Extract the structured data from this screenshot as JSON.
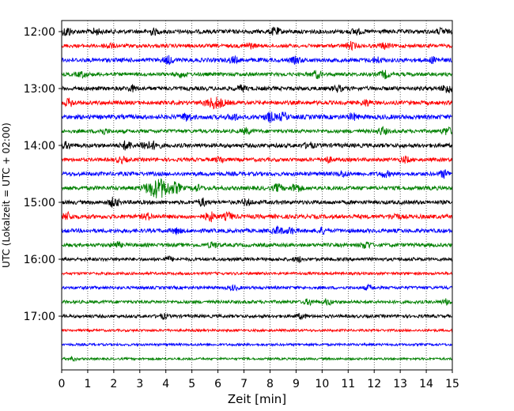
{
  "chart_data": {
    "type": "line",
    "title": "",
    "xlabel": "Zeit  [min]",
    "ylabel": "UTC (Lokalzeit = UTC + 02:00)",
    "xlim": [
      0,
      15
    ],
    "x_ticks": [
      "0",
      "1",
      "2",
      "3",
      "4",
      "5",
      "6",
      "7",
      "8",
      "9",
      "10",
      "11",
      "12",
      "13",
      "14",
      "15"
    ],
    "y_ticks": [
      "12:00",
      "13:00",
      "14:00",
      "15:00",
      "16:00",
      "17:00"
    ],
    "grid": "vertical dotted at each minute",
    "row_colors": [
      "#000000",
      "#ff0000",
      "#0000ff",
      "#008000"
    ],
    "rows": [
      {
        "start": "12:00",
        "color": "#000000",
        "amp": 2.6,
        "bursts": [
          [
            0.2,
            5
          ],
          [
            1.3,
            3
          ],
          [
            3.5,
            3
          ],
          [
            8.2,
            4
          ],
          [
            11.3,
            3
          ],
          [
            14.6,
            3
          ]
        ]
      },
      {
        "start": "12:15",
        "color": "#ff0000",
        "amp": 2.3,
        "bursts": [
          [
            1.8,
            3
          ],
          [
            7.2,
            3
          ],
          [
            11.1,
            4
          ],
          [
            12.4,
            3
          ]
        ]
      },
      {
        "start": "12:30",
        "color": "#0000ff",
        "amp": 2.6,
        "bursts": [
          [
            4.1,
            4
          ],
          [
            6.6,
            3
          ],
          [
            9.0,
            3
          ],
          [
            12.1,
            3
          ],
          [
            14.3,
            3
          ]
        ]
      },
      {
        "start": "12:45",
        "color": "#008000",
        "amp": 2.3,
        "bursts": [
          [
            0.8,
            3
          ],
          [
            4.6,
            3
          ],
          [
            9.8,
            4
          ],
          [
            12.4,
            4
          ]
        ]
      },
      {
        "start": "13:00",
        "color": "#000000",
        "amp": 2.5,
        "bursts": [
          [
            2.7,
            3
          ],
          [
            6.9,
            3
          ],
          [
            10.6,
            3
          ],
          [
            14.8,
            5
          ]
        ]
      },
      {
        "start": "13:15",
        "color": "#ff0000",
        "amp": 2.5,
        "bursts": [
          [
            0.3,
            4
          ],
          [
            5.9,
            6
          ],
          [
            11.7,
            3
          ]
        ]
      },
      {
        "start": "13:30",
        "color": "#0000ff",
        "amp": 2.8,
        "bursts": [
          [
            4.8,
            4
          ],
          [
            6.6,
            3
          ],
          [
            8.0,
            5
          ],
          [
            8.5,
            4
          ],
          [
            11.2,
            3
          ]
        ]
      },
      {
        "start": "13:45",
        "color": "#008000",
        "amp": 2.3,
        "bursts": [
          [
            1.6,
            3
          ],
          [
            7.1,
            3
          ],
          [
            12.3,
            4
          ],
          [
            14.8,
            4
          ]
        ]
      },
      {
        "start": "14:00",
        "color": "#000000",
        "amp": 2.6,
        "bursts": [
          [
            0.2,
            3
          ],
          [
            2.5,
            5
          ],
          [
            3.2,
            5
          ],
          [
            3.6,
            4
          ],
          [
            9.5,
            3
          ]
        ]
      },
      {
        "start": "14:15",
        "color": "#ff0000",
        "amp": 2.3,
        "bursts": [
          [
            2.3,
            3
          ],
          [
            6.1,
            3
          ],
          [
            10.2,
            3
          ],
          [
            13.2,
            3
          ]
        ]
      },
      {
        "start": "14:30",
        "color": "#0000ff",
        "amp": 2.5,
        "bursts": [
          [
            10.8,
            3
          ],
          [
            12.4,
            3
          ],
          [
            14.7,
            4
          ]
        ]
      },
      {
        "start": "14:45",
        "color": "#008000",
        "amp": 2.5,
        "bursts": [
          [
            3.5,
            7
          ],
          [
            3.9,
            8
          ],
          [
            4.4,
            5
          ],
          [
            5.2,
            3
          ],
          [
            8.3,
            4
          ],
          [
            9.0,
            5
          ]
        ]
      },
      {
        "start": "15:00",
        "color": "#000000",
        "amp": 2.5,
        "bursts": [
          [
            2.0,
            5
          ],
          [
            5.4,
            4
          ],
          [
            7.1,
            3
          ]
        ]
      },
      {
        "start": "15:15",
        "color": "#ff0000",
        "amp": 2.6,
        "bursts": [
          [
            0.2,
            4
          ],
          [
            3.3,
            3
          ],
          [
            5.7,
            5
          ],
          [
            6.4,
            4
          ],
          [
            12.8,
            3
          ]
        ]
      },
      {
        "start": "15:30",
        "color": "#0000ff",
        "amp": 2.5,
        "bursts": [
          [
            4.4,
            3
          ],
          [
            8.3,
            4
          ],
          [
            8.8,
            3
          ],
          [
            10.0,
            3
          ]
        ]
      },
      {
        "start": "15:45",
        "color": "#008000",
        "amp": 2.3,
        "bursts": [
          [
            2.1,
            3
          ],
          [
            5.8,
            3
          ],
          [
            11.7,
            4
          ]
        ]
      },
      {
        "start": "16:00",
        "color": "#000000",
        "amp": 2.1,
        "bursts": [
          [
            4.1,
            2.5
          ],
          [
            9.1,
            2.5
          ]
        ]
      },
      {
        "start": "16:15",
        "color": "#ff0000",
        "amp": 1.7,
        "bursts": []
      },
      {
        "start": "16:30",
        "color": "#0000ff",
        "amp": 1.9,
        "bursts": [
          [
            6.6,
            2.5
          ],
          [
            11.8,
            2.5
          ]
        ]
      },
      {
        "start": "16:45",
        "color": "#008000",
        "amp": 2.0,
        "bursts": [
          [
            9.5,
            3
          ],
          [
            10.2,
            3
          ],
          [
            14.8,
            3
          ]
        ]
      },
      {
        "start": "17:00",
        "color": "#000000",
        "amp": 2.0,
        "bursts": [
          [
            3.9,
            2.5
          ],
          [
            9.2,
            2.5
          ]
        ]
      },
      {
        "start": "17:15",
        "color": "#ff0000",
        "amp": 1.5,
        "bursts": []
      },
      {
        "start": "17:30",
        "color": "#0000ff",
        "amp": 1.5,
        "bursts": []
      },
      {
        "start": "17:45",
        "color": "#008000",
        "amp": 1.4,
        "bursts": [
          [
            0.4,
            2
          ]
        ]
      }
    ]
  }
}
